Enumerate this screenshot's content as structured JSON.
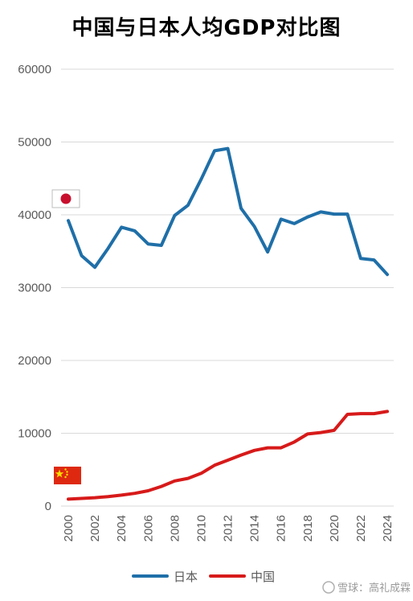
{
  "chart_data": {
    "type": "line",
    "title": "中国与日本人均GDP对比图",
    "xlabel": "",
    "ylabel": "",
    "x": [
      2000,
      2001,
      2002,
      2003,
      2004,
      2005,
      2006,
      2007,
      2008,
      2009,
      2010,
      2011,
      2012,
      2013,
      2014,
      2015,
      2016,
      2017,
      2018,
      2019,
      2020,
      2021,
      2022,
      2023,
      2024
    ],
    "x_tick_labels": [
      "2000",
      "2002",
      "2004",
      "2006",
      "2008",
      "2010",
      "2012",
      "2014",
      "2016",
      "2018",
      "2020",
      "2022",
      "2024"
    ],
    "y_tick_labels": [
      "0",
      "10000",
      "20000",
      "30000",
      "40000",
      "50000",
      "60000"
    ],
    "ylim": [
      0,
      60000
    ],
    "grid": true,
    "legend_position": "bottom",
    "series": [
      {
        "name": "日本",
        "color": "#1f6fa8",
        "values": [
          39200,
          34400,
          32800,
          35400,
          38300,
          37800,
          36000,
          35800,
          39900,
          41300,
          44900,
          48800,
          49100,
          40900,
          38400,
          34900,
          39400,
          38800,
          39700,
          40400,
          40100,
          40100,
          34000,
          33800,
          31800
        ]
      },
      {
        "name": "中国",
        "color": "#d71a1a",
        "values": [
          950,
          1050,
          1150,
          1300,
          1500,
          1750,
          2100,
          2700,
          3450,
          3800,
          4500,
          5600,
          6300,
          7000,
          7650,
          8000,
          8000,
          8800,
          9900,
          10100,
          10400,
          12600,
          12700,
          12700,
          13000
        ]
      }
    ]
  },
  "flags": [
    {
      "series": "日本",
      "icon": "japan-flag-icon"
    },
    {
      "series": "中国",
      "icon": "china-flag-icon"
    }
  ],
  "watermark": "雪球：高礼成霖"
}
